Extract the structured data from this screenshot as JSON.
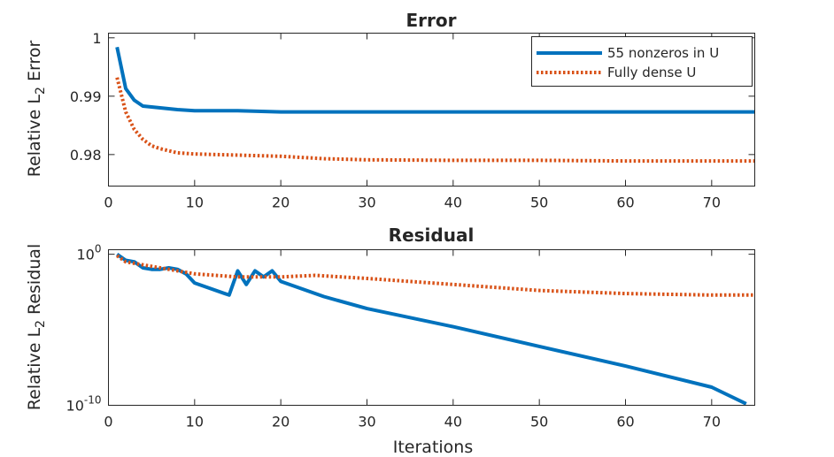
{
  "chart_data": [
    {
      "type": "line",
      "title": "Error",
      "xlabel": "",
      "ylabel": "Relative L₂ Error",
      "xlim": [
        0,
        75
      ],
      "ylim": [
        0.9746,
        1.0008
      ],
      "yscale": "linear",
      "xticks": [
        0,
        10,
        20,
        30,
        40,
        50,
        60,
        70
      ],
      "yticks": [
        0.98,
        0.99,
        1
      ],
      "yticklabels": [
        "0.98",
        "0.99",
        "1"
      ],
      "legend_position": "top-right",
      "series": [
        {
          "name": "55 nonzeros in U",
          "color": "#0072BD",
          "style": "solid",
          "x": [
            1,
            2,
            3,
            4,
            6,
            8,
            10,
            15,
            20,
            30,
            40,
            50,
            60,
            70,
            75
          ],
          "y": [
            0.9984,
            0.9913,
            0.9893,
            0.9883,
            0.988,
            0.9877,
            0.9875,
            0.9875,
            0.9873,
            0.9873,
            0.9873,
            0.9873,
            0.9873,
            0.9873,
            0.9873
          ]
        },
        {
          "name": "Fully dense U",
          "color": "#D95319",
          "style": "dotted",
          "x": [
            1,
            2,
            3,
            4,
            5,
            6,
            8,
            10,
            15,
            20,
            25,
            30,
            40,
            50,
            60,
            70,
            75
          ],
          "y": [
            0.9932,
            0.9873,
            0.9843,
            0.9826,
            0.9815,
            0.981,
            0.9803,
            0.9801,
            0.9799,
            0.9797,
            0.9793,
            0.9791,
            0.979,
            0.979,
            0.9789,
            0.9789,
            0.9789
          ]
        }
      ]
    },
    {
      "type": "line",
      "title": "Residual",
      "xlabel": "Iterations",
      "ylabel": "Relative L₂ Residual",
      "xlim": [
        0,
        75
      ],
      "ylim": [
        -10,
        0.3
      ],
      "yscale": "log",
      "xticks": [
        0,
        10,
        20,
        30,
        40,
        50,
        60,
        70
      ],
      "yticks": [
        0,
        -10
      ],
      "yticklabels": [
        "10^0",
        "10^-10"
      ],
      "series": [
        {
          "name": "55 nonzeros in U",
          "color": "#0072BD",
          "style": "solid",
          "x": [
            1,
            2,
            3,
            4,
            5,
            6,
            7,
            8,
            9,
            10,
            14,
            15,
            16,
            17,
            18,
            19,
            20,
            25,
            30,
            40,
            50,
            60,
            70,
            74
          ],
          "y": [
            0,
            -0.4,
            -0.5,
            -0.9,
            -1.0,
            -1.0,
            -0.9,
            -1.0,
            -1.3,
            -1.9,
            -2.7,
            -1.1,
            -2.0,
            -1.1,
            -1.5,
            -1.1,
            -1.8,
            -2.8,
            -3.6,
            -4.8,
            -6.1,
            -7.4,
            -8.8,
            -9.9
          ]
        },
        {
          "name": "Fully dense U",
          "color": "#D95319",
          "style": "dotted",
          "x": [
            1,
            2,
            3,
            4,
            5,
            6,
            7,
            8,
            10,
            15,
            20,
            24,
            30,
            40,
            50,
            60,
            70,
            75
          ],
          "y": [
            -0.1,
            -0.5,
            -0.6,
            -0.7,
            -0.8,
            -0.9,
            -1.0,
            -1.1,
            -1.3,
            -1.5,
            -1.5,
            -1.4,
            -1.6,
            -2.0,
            -2.4,
            -2.6,
            -2.7,
            -2.7
          ]
        }
      ]
    }
  ]
}
